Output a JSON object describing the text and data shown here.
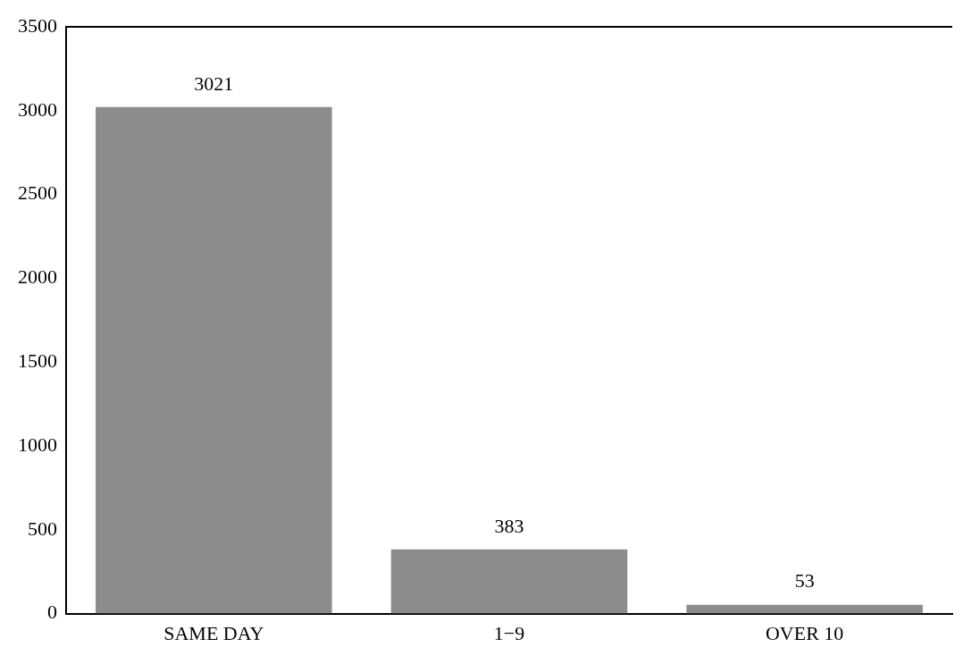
{
  "chart_data": {
    "type": "bar",
    "categories": [
      "SAME DAY",
      "1−9",
      "OVER 10"
    ],
    "values": [
      3021,
      383,
      53
    ],
    "color": "#8c8c8c",
    "ylim": [
      0,
      3500
    ],
    "yticks": [
      0,
      500,
      1000,
      1500,
      2000,
      2500,
      3000,
      3500
    ],
    "grid": false,
    "legend": false,
    "data_labels": true
  }
}
